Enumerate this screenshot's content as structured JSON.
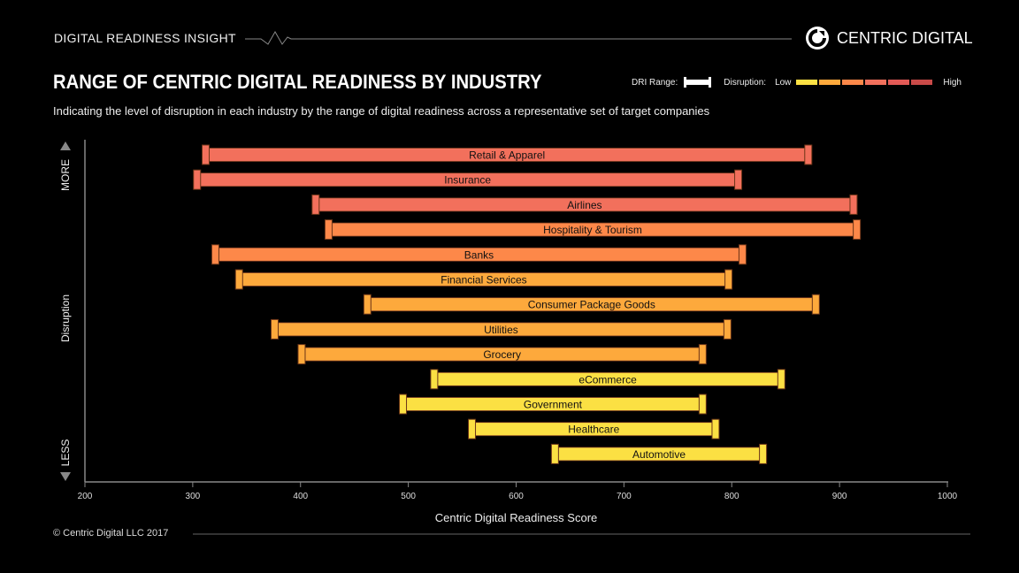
{
  "header": {
    "label": "DIGITAL READINESS INSIGHT",
    "brand": "CENTRIC DIGITAL",
    "brand_icon": "centric-logo-icon"
  },
  "title": "RANGE OF CENTRIC DIGITAL READINESS BY INDUSTRY",
  "subtitle": "Indicating the level of disruption in each industry by the range of digital readiness across a representative set of target companies",
  "legend": {
    "range_label": "DRI Range:",
    "disruption_label": "Disruption:",
    "low": "Low",
    "high": "High",
    "scale_colors": [
      "#fbe043",
      "#fda93c",
      "#fd8849",
      "#f2705c",
      "#e35a56",
      "#c94a48"
    ]
  },
  "footer": {
    "copyright": "© Centric Digital LLC 2017"
  },
  "chart_data": {
    "type": "bar",
    "subtype": "floating-range",
    "xlabel": "Centric Digital Readiness Score",
    "ylabel": "Disruption",
    "y_top_label": "MORE",
    "y_bottom_label": "LESS",
    "xlim": [
      200,
      1000
    ],
    "xticks": [
      200,
      300,
      400,
      500,
      600,
      700,
      800,
      900,
      1000
    ],
    "grid": false,
    "categories": [
      "Retail & Apparel",
      "Insurance",
      "Airlines",
      "Hospitality & Tourism",
      "Banks",
      "Financial Services",
      "Consumer Package Goods",
      "Utilities",
      "Grocery",
      "eCommerce",
      "Government",
      "Healthcare",
      "Automotive"
    ],
    "ranges": [
      [
        312,
        871
      ],
      [
        304,
        806
      ],
      [
        414,
        913
      ],
      [
        426,
        916
      ],
      [
        321,
        810
      ],
      [
        343,
        797
      ],
      [
        462,
        878
      ],
      [
        376,
        796
      ],
      [
        401,
        773
      ],
      [
        524,
        846
      ],
      [
        495,
        773
      ],
      [
        559,
        785
      ],
      [
        636,
        829
      ]
    ],
    "colors": [
      "#f2705c",
      "#f2705c",
      "#f2705c",
      "#fd8849",
      "#fd8849",
      "#fda93c",
      "#fda93c",
      "#fda93c",
      "#fda93c",
      "#fbe043",
      "#fbe043",
      "#fbe043",
      "#fbe043"
    ]
  }
}
